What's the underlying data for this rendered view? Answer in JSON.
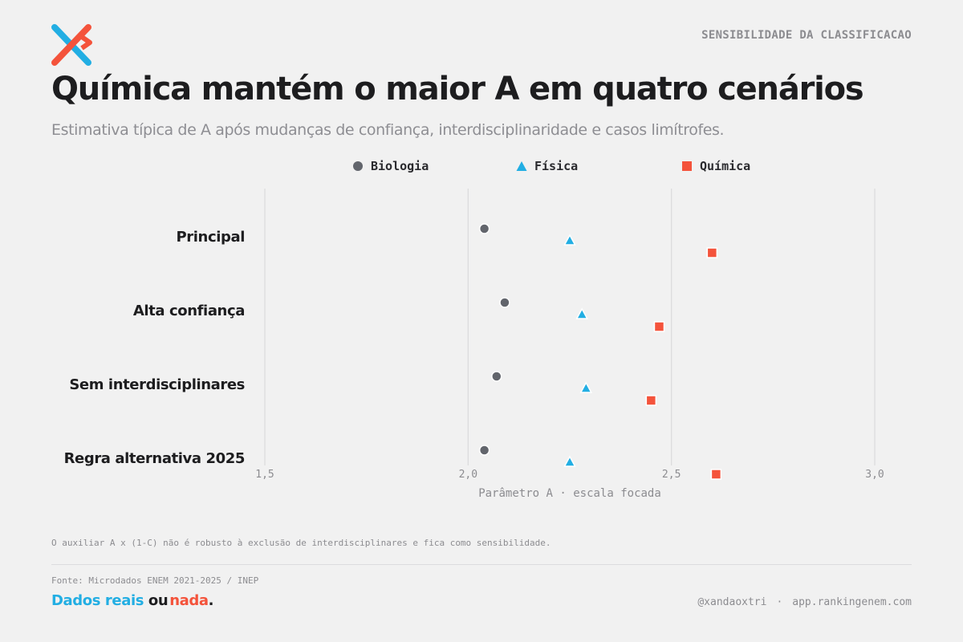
{
  "brand": {
    "logo_icon": "x-logo-icon",
    "colors": {
      "blue": "#22aee3",
      "orange": "#f4533b",
      "dark": "#1d1d1f",
      "gray": "#8c8c90"
    }
  },
  "header": {
    "tag": "SENSIBILIDADE DA CLASSIFICACAO",
    "title": "Química mantém o maior A em quatro cenários",
    "subtitle": "Estimativa típica de A após mudanças de confiança, interdisciplinaridade e casos limítrofes."
  },
  "legend": [
    {
      "label": "Biologia",
      "shape": "circle",
      "color": "#62656c"
    },
    {
      "label": "Física",
      "shape": "triangle",
      "color": "#22aee3"
    },
    {
      "label": "Química",
      "shape": "square",
      "color": "#f4533b"
    }
  ],
  "chart_data": {
    "type": "scatter",
    "orientation": "horizontal",
    "categories": [
      "Principal",
      "Alta confiança",
      "Sem interdisciplinares",
      "Regra alternativa 2025"
    ],
    "series": [
      {
        "name": "Biologia",
        "marker": "circle",
        "color": "#62656c",
        "values": [
          2.04,
          2.09,
          2.07,
          2.04
        ]
      },
      {
        "name": "Física",
        "marker": "triangle",
        "color": "#22aee3",
        "values": [
          2.25,
          2.28,
          2.29,
          2.25
        ]
      },
      {
        "name": "Química",
        "marker": "square",
        "color": "#f4533b",
        "values": [
          2.6,
          2.47,
          2.45,
          2.61
        ]
      }
    ],
    "xlim": [
      1.5,
      3.0
    ],
    "xticks": [
      1.5,
      2.0,
      2.5,
      3.0
    ],
    "xtick_labels": [
      "1,5",
      "2,0",
      "2,5",
      "3,0"
    ],
    "xlabel": "Parâmetro A · escala focada",
    "grid": "vertical",
    "legend_position": "top-center"
  },
  "footer": {
    "note": "O auxiliar A x (1-C) não é robusto à exclusão de interdisciplinares e fica como sensibilidade.",
    "source": "Fonte: Microdados ENEM 2021-2025 / INEP",
    "slogan": {
      "part1": "Dados reais",
      "part2": "ou",
      "part3": "nada",
      "part4": "."
    },
    "handle": "@xandaoxtri",
    "separator": "·",
    "site": "app.rankingenem.com"
  }
}
